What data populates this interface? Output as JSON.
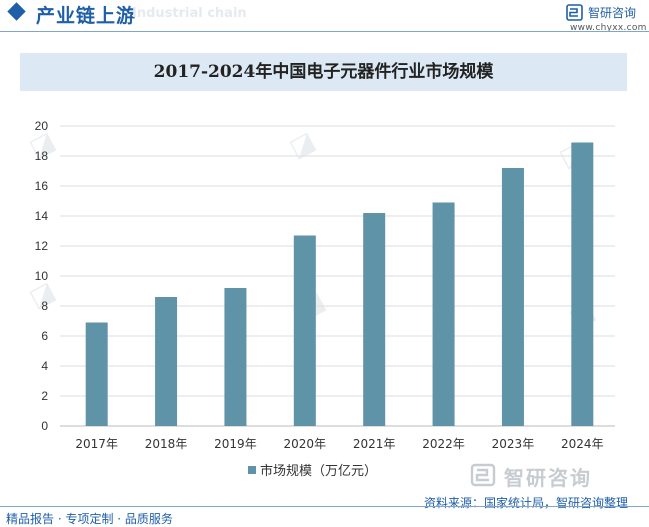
{
  "header": {
    "title": "产业链上游",
    "ghost_text": "Industrial chain"
  },
  "brand": {
    "name": "智研咨询",
    "url": "www.chyxx.com"
  },
  "chart_data": {
    "type": "bar",
    "title": "2017-2024年中国电子元器件行业市场规模",
    "categories": [
      "2017年",
      "2018年",
      "2019年",
      "2020年",
      "2021年",
      "2022年",
      "2023年",
      "2024年"
    ],
    "series": [
      {
        "name": "市场规模（万亿元）",
        "values": [
          6.9,
          8.6,
          9.2,
          12.7,
          14.2,
          14.9,
          17.2,
          18.9
        ]
      }
    ],
    "xlabel": "",
    "ylabel": "",
    "ylim": [
      0,
      20
    ],
    "yticks": [
      0,
      2,
      4,
      6,
      8,
      10,
      12,
      14,
      16,
      18,
      20
    ],
    "grid": true,
    "legend_position": "bottom-center",
    "bar_color": "#5e93a8"
  },
  "footer": {
    "left": "精品报告 · 专项定制 · 品质服务",
    "right": "资料来源：国家统计局，智研咨询整理"
  },
  "colors": {
    "brand_blue": "#1f5fa8",
    "title_band": "#dce9f5",
    "grid": "#dddddd"
  }
}
